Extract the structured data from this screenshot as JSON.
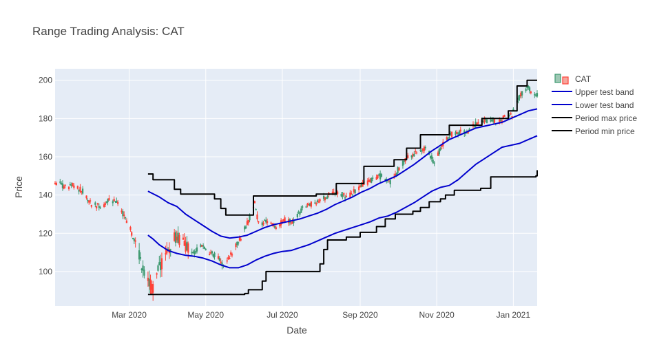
{
  "chart_data": {
    "type": "candlestick",
    "title": "Range Trading Analysis: CAT",
    "xlabel": "Date",
    "ylabel": "Price",
    "xlim": [
      "2020-01-02",
      "2021-01-20"
    ],
    "ylim": [
      82,
      206
    ],
    "grid": true,
    "legend_position": "top-right",
    "x_ticks": [
      {
        "date": "2020-03-01",
        "label": "Mar 2020"
      },
      {
        "date": "2020-05-01",
        "label": "May 2020"
      },
      {
        "date": "2020-07-01",
        "label": "Jul 2020"
      },
      {
        "date": "2020-09-01",
        "label": "Sep 2020"
      },
      {
        "date": "2020-11-01",
        "label": "Nov 2020"
      },
      {
        "date": "2021-01-01",
        "label": "Jan 2021"
      }
    ],
    "y_ticks": [
      100,
      120,
      140,
      160,
      180,
      200
    ],
    "colors": {
      "increasing": "#3d9970",
      "decreasing": "#ff4136",
      "increasing_fill": "#9ec8b4",
      "decreasing_fill": "#f5a69e",
      "upper_band": "#0000cd",
      "lower_band": "#0000cd",
      "max_price": "#000000",
      "min_price": "#000000",
      "plot_bg": "#e5ecf6",
      "grid": "#ffffff"
    },
    "legend": {
      "candles": "CAT",
      "upper_band": "Upper test band",
      "lower_band": "Lower test band",
      "max_price": "Period max price",
      "min_price": "Period min price"
    },
    "price_path": [
      [
        "2020-01-02",
        147
      ],
      [
        "2020-01-10",
        144
      ],
      [
        "2020-01-17",
        145
      ],
      [
        "2020-01-24",
        142
      ],
      [
        "2020-01-31",
        135
      ],
      [
        "2020-02-07",
        134
      ],
      [
        "2020-02-14",
        137
      ],
      [
        "2020-02-21",
        136
      ],
      [
        "2020-02-26",
        129
      ],
      [
        "2020-03-02",
        122
      ],
      [
        "2020-03-06",
        115
      ],
      [
        "2020-03-12",
        101
      ],
      [
        "2020-03-16",
        95
      ],
      [
        "2020-03-20",
        91
      ],
      [
        "2020-03-24",
        100
      ],
      [
        "2020-03-31",
        110
      ],
      [
        "2020-04-07",
        118
      ],
      [
        "2020-04-14",
        114
      ],
      [
        "2020-04-21",
        110
      ],
      [
        "2020-04-28",
        113
      ],
      [
        "2020-05-05",
        110
      ],
      [
        "2020-05-12",
        106
      ],
      [
        "2020-05-15",
        103
      ],
      [
        "2020-05-22",
        110
      ],
      [
        "2020-05-29",
        118
      ],
      [
        "2020-06-05",
        128
      ],
      [
        "2020-06-09",
        136
      ],
      [
        "2020-06-12",
        125
      ],
      [
        "2020-06-19",
        126
      ],
      [
        "2020-06-26",
        123
      ],
      [
        "2020-07-03",
        127
      ],
      [
        "2020-07-10",
        126
      ],
      [
        "2020-07-17",
        133
      ],
      [
        "2020-07-24",
        135
      ],
      [
        "2020-07-31",
        137
      ],
      [
        "2020-08-07",
        140
      ],
      [
        "2020-08-14",
        141
      ],
      [
        "2020-08-21",
        139
      ],
      [
        "2020-08-28",
        142
      ],
      [
        "2020-09-04",
        146
      ],
      [
        "2020-09-11",
        148
      ],
      [
        "2020-09-18",
        150
      ],
      [
        "2020-09-25",
        147
      ],
      [
        "2020-10-02",
        154
      ],
      [
        "2020-10-09",
        160
      ],
      [
        "2020-10-16",
        162
      ],
      [
        "2020-10-23",
        165
      ],
      [
        "2020-10-30",
        157
      ],
      [
        "2020-11-06",
        167
      ],
      [
        "2020-11-13",
        172
      ],
      [
        "2020-11-20",
        173
      ],
      [
        "2020-11-27",
        174
      ],
      [
        "2020-12-04",
        178
      ],
      [
        "2020-12-11",
        179
      ],
      [
        "2020-12-18",
        178
      ],
      [
        "2020-12-24",
        180
      ],
      [
        "2020-12-31",
        182
      ],
      [
        "2021-01-07",
        193
      ],
      [
        "2021-01-12",
        196
      ],
      [
        "2021-01-20",
        192
      ]
    ],
    "series": [
      {
        "name": "Upper test band",
        "color": "#0000cd",
        "points": [
          [
            "2020-03-16",
            142
          ],
          [
            "2020-03-25",
            139
          ],
          [
            "2020-04-01",
            136
          ],
          [
            "2020-04-08",
            134
          ],
          [
            "2020-04-15",
            130
          ],
          [
            "2020-04-22",
            127
          ],
          [
            "2020-04-29",
            124
          ],
          [
            "2020-05-06",
            121
          ],
          [
            "2020-05-13",
            118.5
          ],
          [
            "2020-05-20",
            117.5
          ],
          [
            "2020-05-27",
            118
          ],
          [
            "2020-06-03",
            119
          ],
          [
            "2020-06-10",
            121
          ],
          [
            "2020-06-17",
            123
          ],
          [
            "2020-06-24",
            124.5
          ],
          [
            "2020-07-01",
            125.5
          ],
          [
            "2020-07-08",
            126.5
          ],
          [
            "2020-07-15",
            127.5
          ],
          [
            "2020-07-22",
            129
          ],
          [
            "2020-07-29",
            130.5
          ],
          [
            "2020-08-05",
            132.5
          ],
          [
            "2020-08-12",
            135
          ],
          [
            "2020-08-19",
            137
          ],
          [
            "2020-08-26",
            139
          ],
          [
            "2020-09-02",
            141.5
          ],
          [
            "2020-09-09",
            143.5
          ],
          [
            "2020-09-16",
            146
          ],
          [
            "2020-09-23",
            148
          ],
          [
            "2020-09-30",
            150
          ],
          [
            "2020-10-07",
            153
          ],
          [
            "2020-10-14",
            156
          ],
          [
            "2020-10-21",
            159.5
          ],
          [
            "2020-10-28",
            163
          ],
          [
            "2020-11-04",
            166
          ],
          [
            "2020-11-11",
            169
          ],
          [
            "2020-11-18",
            171
          ],
          [
            "2020-11-25",
            173
          ],
          [
            "2020-12-02",
            175
          ],
          [
            "2020-12-09",
            176
          ],
          [
            "2020-12-16",
            177
          ],
          [
            "2020-12-23",
            178
          ],
          [
            "2020-12-30",
            180
          ],
          [
            "2021-01-06",
            182
          ],
          [
            "2021-01-13",
            184
          ],
          [
            "2021-01-20",
            185
          ]
        ]
      },
      {
        "name": "Lower test band",
        "color": "#0000cd",
        "points": [
          [
            "2020-03-16",
            119
          ],
          [
            "2020-03-20",
            117
          ],
          [
            "2020-03-25",
            114
          ],
          [
            "2020-04-01",
            111
          ],
          [
            "2020-04-08",
            109.5
          ],
          [
            "2020-04-15",
            108.5
          ],
          [
            "2020-04-22",
            108
          ],
          [
            "2020-04-29",
            107
          ],
          [
            "2020-05-06",
            105.5
          ],
          [
            "2020-05-13",
            103.5
          ],
          [
            "2020-05-20",
            102
          ],
          [
            "2020-05-27",
            102
          ],
          [
            "2020-06-03",
            103.5
          ],
          [
            "2020-06-10",
            106
          ],
          [
            "2020-06-17",
            108
          ],
          [
            "2020-06-24",
            109.5
          ],
          [
            "2020-07-01",
            110.5
          ],
          [
            "2020-07-08",
            111
          ],
          [
            "2020-07-15",
            112.5
          ],
          [
            "2020-07-22",
            114
          ],
          [
            "2020-07-29",
            116
          ],
          [
            "2020-08-05",
            118
          ],
          [
            "2020-08-12",
            120
          ],
          [
            "2020-08-19",
            121.5
          ],
          [
            "2020-08-26",
            123
          ],
          [
            "2020-09-02",
            124.5
          ],
          [
            "2020-09-09",
            126
          ],
          [
            "2020-09-16",
            128
          ],
          [
            "2020-09-23",
            129
          ],
          [
            "2020-09-30",
            131
          ],
          [
            "2020-10-07",
            133.5
          ],
          [
            "2020-10-14",
            136
          ],
          [
            "2020-10-21",
            139
          ],
          [
            "2020-10-28",
            142
          ],
          [
            "2020-11-04",
            144
          ],
          [
            "2020-11-11",
            145
          ],
          [
            "2020-11-18",
            148
          ],
          [
            "2020-11-25",
            152
          ],
          [
            "2020-12-02",
            156
          ],
          [
            "2020-12-09",
            159
          ],
          [
            "2020-12-16",
            162
          ],
          [
            "2020-12-23",
            165
          ],
          [
            "2020-12-30",
            166
          ],
          [
            "2021-01-06",
            167
          ],
          [
            "2021-01-13",
            169
          ],
          [
            "2021-01-20",
            171
          ]
        ]
      },
      {
        "name": "Period max price",
        "color": "#000000",
        "step": true,
        "points": [
          [
            "2020-03-16",
            151
          ],
          [
            "2020-03-20",
            148
          ],
          [
            "2020-04-06",
            143
          ],
          [
            "2020-04-11",
            140.5
          ],
          [
            "2020-05-08",
            138
          ],
          [
            "2020-05-13",
            133
          ],
          [
            "2020-05-17",
            129.5
          ],
          [
            "2020-06-08",
            139.5
          ],
          [
            "2020-07-28",
            140.5
          ],
          [
            "2020-08-13",
            146
          ],
          [
            "2020-09-04",
            155
          ],
          [
            "2020-09-28",
            158.5
          ],
          [
            "2020-10-08",
            164.5
          ],
          [
            "2020-10-19",
            171.5
          ],
          [
            "2020-11-11",
            176.5
          ],
          [
            "2020-12-07",
            180
          ],
          [
            "2020-12-28",
            184
          ],
          [
            "2021-01-04",
            197
          ],
          [
            "2021-01-12",
            200
          ],
          [
            "2021-01-20",
            200
          ]
        ]
      },
      {
        "name": "Period min price",
        "color": "#000000",
        "step": true,
        "points": [
          [
            "2020-03-16",
            88
          ],
          [
            "2020-06-01",
            88.5
          ],
          [
            "2020-06-04",
            90.5
          ],
          [
            "2020-06-15",
            95
          ],
          [
            "2020-06-18",
            100
          ],
          [
            "2020-07-31",
            104
          ],
          [
            "2020-08-03",
            111.5
          ],
          [
            "2020-08-06",
            116.5
          ],
          [
            "2020-08-21",
            118
          ],
          [
            "2020-09-01",
            120.5
          ],
          [
            "2020-09-14",
            123.5
          ],
          [
            "2020-09-21",
            127.5
          ],
          [
            "2020-09-29",
            130
          ],
          [
            "2020-10-13",
            131.5
          ],
          [
            "2020-10-19",
            133.5
          ],
          [
            "2020-10-26",
            136.5
          ],
          [
            "2020-11-04",
            138
          ],
          [
            "2020-11-08",
            140
          ],
          [
            "2020-11-15",
            142.5
          ],
          [
            "2020-12-06",
            143.5
          ],
          [
            "2020-12-14",
            149.5
          ],
          [
            "2021-01-19",
            150
          ],
          [
            "2021-01-20",
            153
          ]
        ]
      }
    ]
  }
}
